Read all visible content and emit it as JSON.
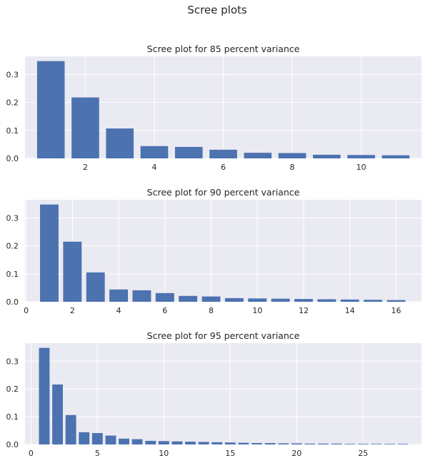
{
  "figure": {
    "title": "Scree plots"
  },
  "chart_data": [
    {
      "type": "bar",
      "title": "Scree plot for 85 percent variance",
      "xlabel": "",
      "ylabel": "",
      "bar_color": "#4c72b0",
      "x": [
        1,
        2,
        3,
        4,
        5,
        6,
        7,
        8,
        9,
        10,
        11
      ],
      "values": [
        0.348,
        0.218,
        0.107,
        0.044,
        0.041,
        0.031,
        0.02,
        0.019,
        0.013,
        0.012,
        0.011
      ],
      "xlim": [
        0.25,
        11.75
      ],
      "ylim": [
        0,
        0.365
      ],
      "xticks": [
        2,
        4,
        6,
        8,
        10
      ],
      "yticks": [
        0.0,
        0.1,
        0.2,
        0.3
      ],
      "ytick_labels": [
        "0.0",
        "0.1",
        "0.2",
        "0.3"
      ],
      "grid": true
    },
    {
      "type": "bar",
      "title": "Scree plot for 90 percent variance",
      "xlabel": "",
      "ylabel": "",
      "bar_color": "#4c72b0",
      "x": [
        1,
        2,
        3,
        4,
        5,
        6,
        7,
        8,
        9,
        10,
        11,
        12,
        13,
        14,
        15,
        16
      ],
      "values": [
        0.348,
        0.215,
        0.105,
        0.044,
        0.041,
        0.031,
        0.021,
        0.019,
        0.013,
        0.012,
        0.011,
        0.01,
        0.009,
        0.008,
        0.007,
        0.006
      ],
      "xlim": [
        -0.05,
        17.1
      ],
      "ylim": [
        0,
        0.365
      ],
      "xticks": [
        0,
        2,
        4,
        6,
        8,
        10,
        12,
        14,
        16
      ],
      "yticks": [
        0.0,
        0.1,
        0.2,
        0.3
      ],
      "ytick_labels": [
        "0.0",
        "0.1",
        "0.2",
        "0.3"
      ],
      "grid": true
    },
    {
      "type": "bar",
      "title": "Scree plot for 95 percent variance",
      "xlabel": "",
      "ylabel": "",
      "bar_color": "#4c72b0",
      "x": [
        1,
        2,
        3,
        4,
        5,
        6,
        7,
        8,
        9,
        10,
        11,
        12,
        13,
        14,
        15,
        16,
        17,
        18,
        19,
        20,
        21,
        22,
        23,
        24,
        25,
        26,
        27,
        28
      ],
      "values": [
        0.348,
        0.216,
        0.106,
        0.044,
        0.041,
        0.032,
        0.021,
        0.019,
        0.013,
        0.012,
        0.011,
        0.01,
        0.009,
        0.008,
        0.007,
        0.006,
        0.005,
        0.005,
        0.004,
        0.004,
        0.003,
        0.003,
        0.003,
        0.002,
        0.002,
        0.002,
        0.002,
        0.002
      ],
      "xlim": [
        -0.45,
        29.4
      ],
      "ylim": [
        0,
        0.365
      ],
      "xticks": [
        0,
        5,
        10,
        15,
        20,
        25
      ],
      "yticks": [
        0.0,
        0.1,
        0.2,
        0.3
      ],
      "ytick_labels": [
        "0.0",
        "0.1",
        "0.2",
        "0.3"
      ],
      "grid": true
    }
  ]
}
